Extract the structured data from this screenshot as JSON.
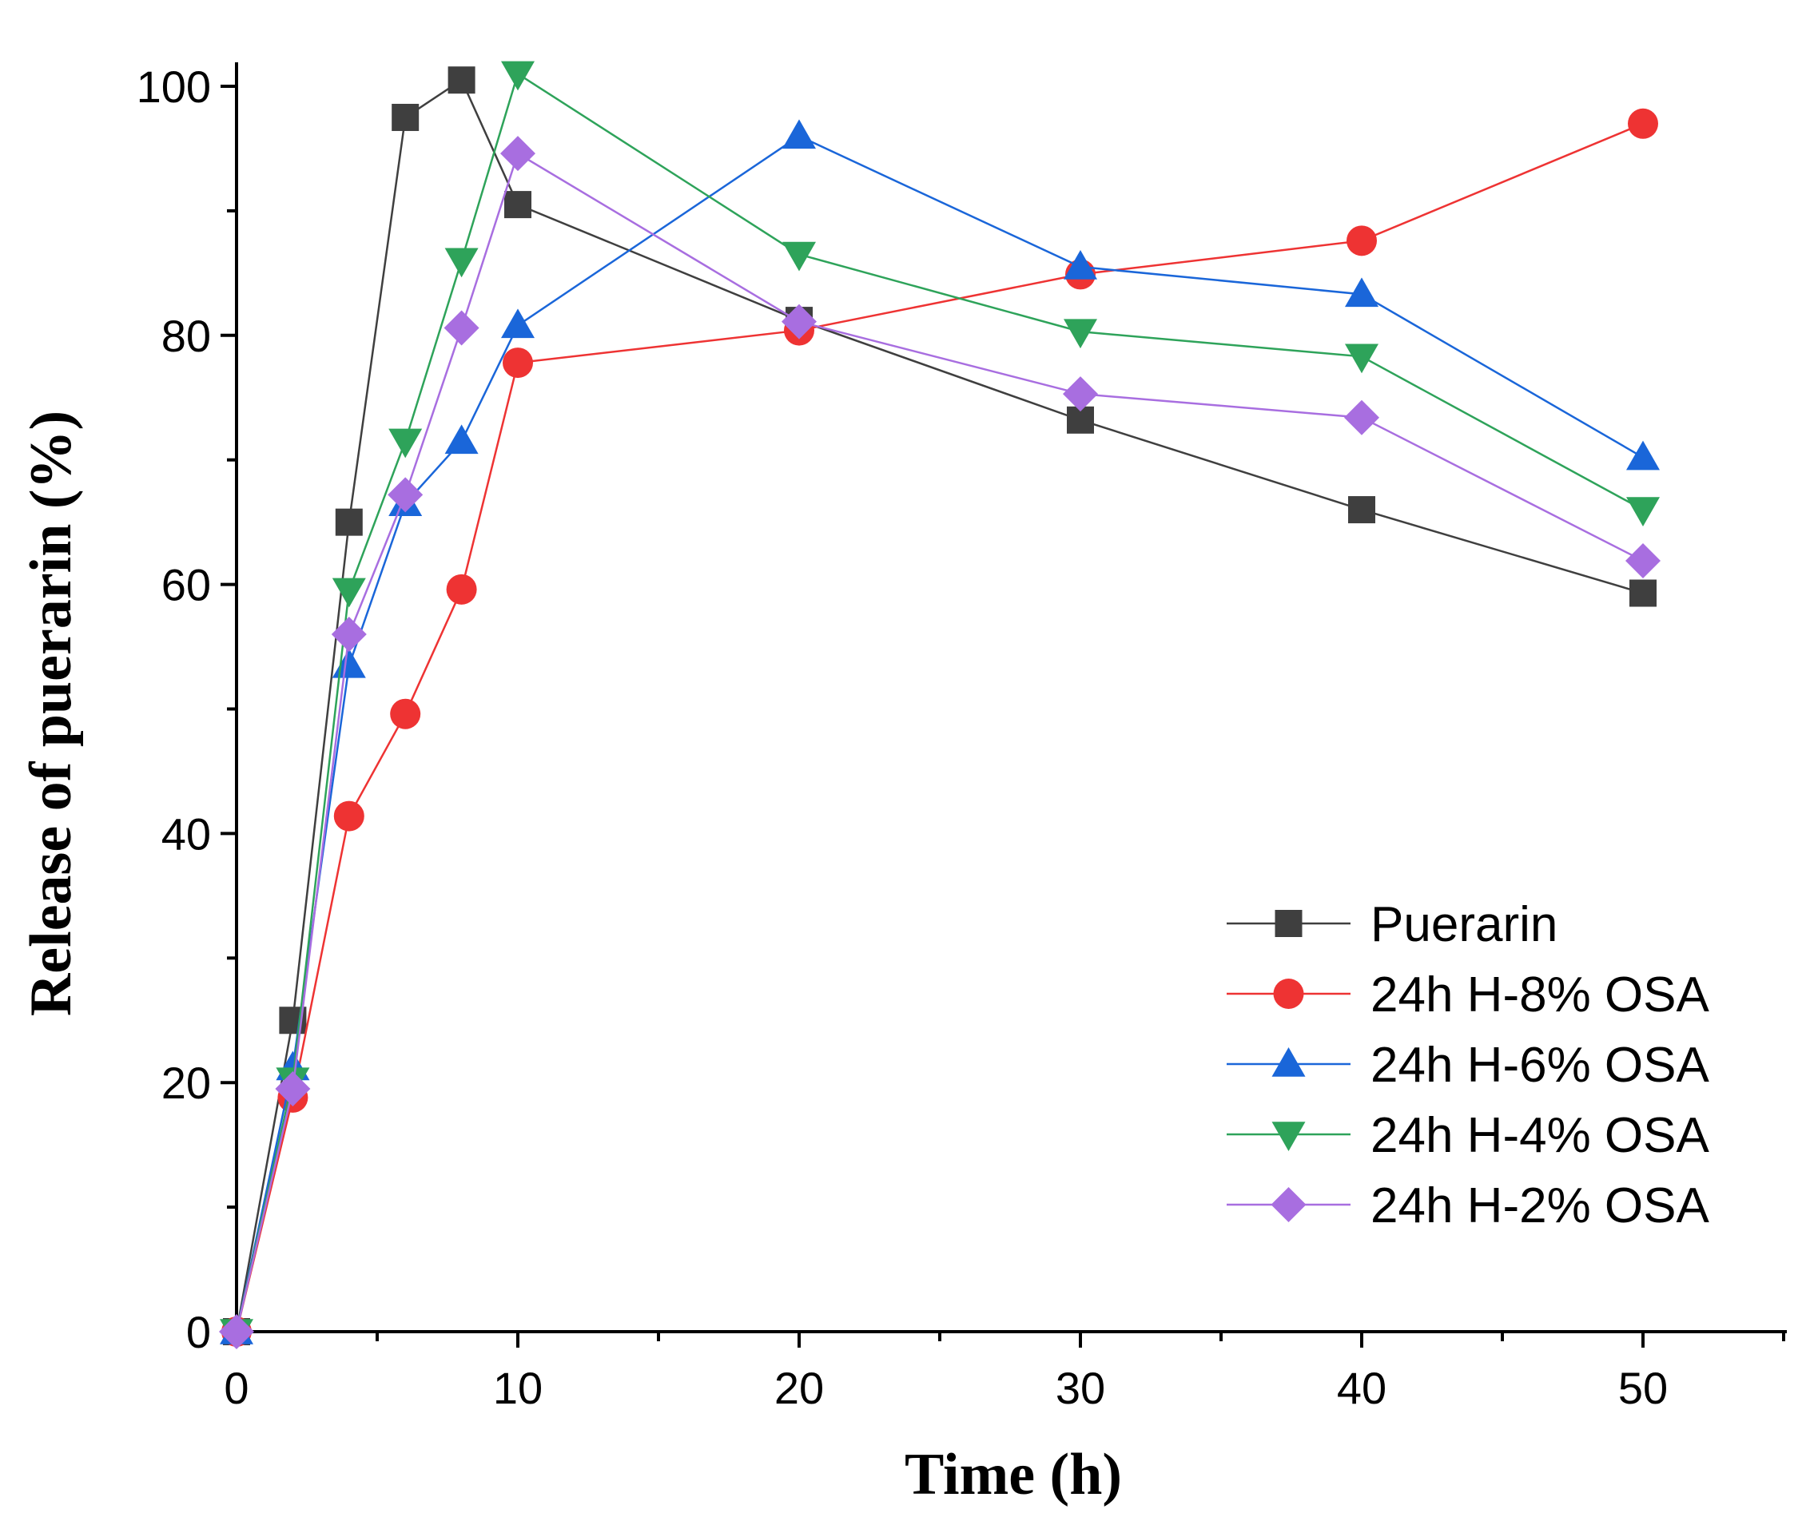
{
  "chart_data": {
    "type": "line",
    "title": "",
    "xlabel": "Time (h)",
    "ylabel": "Release of puerarin (%)",
    "xlim": [
      0,
      55
    ],
    "ylim": [
      0,
      100
    ],
    "x_ticks": [
      0,
      10,
      20,
      30,
      40,
      50
    ],
    "x_tick_labels": [
      "0",
      "10",
      "20",
      "30",
      "40",
      "50"
    ],
    "y_ticks": [
      0,
      20,
      40,
      60,
      80,
      100
    ],
    "y_tick_labels": [
      "0",
      "20",
      "40",
      "60",
      "80",
      "100"
    ],
    "grid": false,
    "legend_position": "bottom-right",
    "series": [
      {
        "name": "Puerarin",
        "marker": "square",
        "color": "#3f3f3f",
        "x": [
          0,
          2,
          4,
          6,
          8,
          10,
          20,
          30,
          40,
          50
        ],
        "values": [
          0,
          25,
          65,
          97.5,
          100.5,
          90.5,
          81.2,
          73.2,
          66,
          59.3
        ]
      },
      {
        "name": "24h H-8% OSA",
        "marker": "circle",
        "color": "#ee3333",
        "x": [
          0,
          2,
          4,
          6,
          8,
          10,
          20,
          30,
          40,
          50
        ],
        "values": [
          0,
          18.8,
          41.4,
          49.6,
          59.6,
          77.8,
          80.4,
          84.9,
          87.6,
          97
        ]
      },
      {
        "name": "24h H-6% OSA",
        "marker": "triangle-up",
        "color": "#1a66d9",
        "x": [
          0,
          2,
          4,
          6,
          8,
          10,
          20,
          30,
          40,
          50
        ],
        "values": [
          0,
          21.2,
          53.5,
          66.5,
          71.5,
          80.8,
          96,
          85.5,
          83.3,
          70.2
        ]
      },
      {
        "name": "24h H-4% OSA",
        "marker": "triangle-down",
        "color": "#2ea35a",
        "x": [
          0,
          2,
          4,
          6,
          8,
          10,
          20,
          30,
          40,
          50
        ],
        "values": [
          0,
          20.2,
          59.5,
          71.5,
          86,
          101,
          86.5,
          80.3,
          78.3,
          66
        ]
      },
      {
        "name": "24h H-2% OSA",
        "marker": "diamond",
        "color": "#a86ee0",
        "x": [
          0,
          2,
          4,
          6,
          8,
          10,
          20,
          30,
          40,
          50
        ],
        "values": [
          0,
          19.5,
          56,
          67.2,
          80.6,
          94.6,
          81.1,
          75.3,
          73.4,
          61.9
        ]
      }
    ]
  }
}
